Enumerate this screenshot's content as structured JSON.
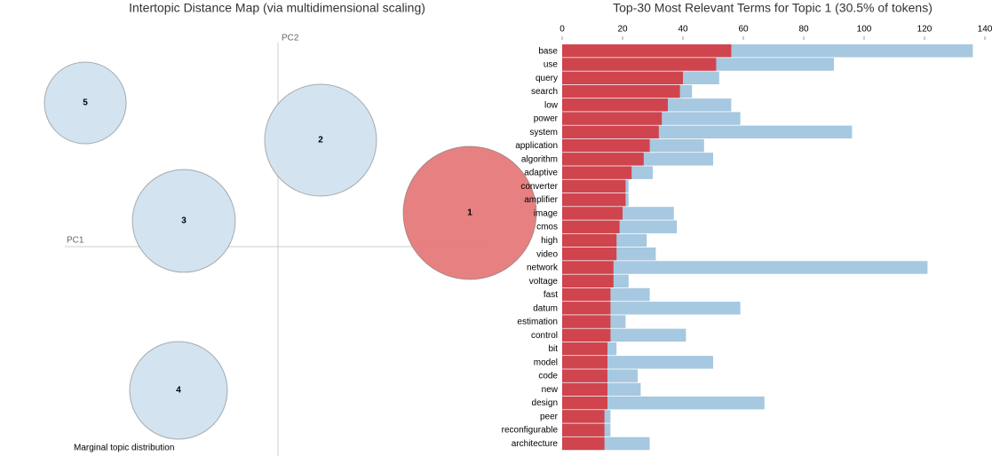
{
  "chart_data": [
    {
      "type": "bubble",
      "title": "Intertopic Distance Map (via multidimensional scaling)",
      "x_label": "PC1",
      "y_label": "PC2",
      "size_label": "Marginal topic distribution",
      "categories": [
        "1",
        "2",
        "3",
        "4",
        "5"
      ],
      "x": [
        2.16,
        0.48,
        -1.06,
        -1.12,
        -2.17
      ],
      "y": [
        0.38,
        1.2,
        0.29,
        -1.62,
        1.62
      ],
      "sizes": [
        30.5,
        21.5,
        18.2,
        16.4,
        11.5
      ],
      "colors": [
        "#e67a7a",
        "#d1e3ef",
        "#d1e3ef",
        "#d1e3ef",
        "#d1e3ef"
      ],
      "xlim": [
        -3.13,
        2.47
      ],
      "ylim": [
        -2.36,
        2.3
      ]
    },
    {
      "type": "barh",
      "title": "Top-30 Most Relevant Terms for Topic 1 (30.5% of tokens)",
      "categories": [
        "base",
        "use",
        "query",
        "search",
        "low",
        "power",
        "system",
        "application",
        "algorithm",
        "adaptive",
        "converter",
        "amplifier",
        "image",
        "cmos",
        "high",
        "video",
        "network",
        "voltage",
        "fast",
        "datum",
        "estimation",
        "control",
        "bit",
        "model",
        "code",
        "new",
        "design",
        "peer",
        "reconfigurable",
        "architecture"
      ],
      "series": [
        {
          "color": "#a6c8e0",
          "values": [
            136,
            90,
            52,
            43,
            56,
            59,
            96,
            47,
            50,
            30,
            22,
            22,
            37,
            38,
            28,
            31,
            121,
            22,
            29,
            59,
            21,
            41,
            18,
            50,
            25,
            26,
            67,
            16,
            16,
            29
          ]
        },
        {
          "color": "#d0444d",
          "values": [
            56,
            51,
            40,
            39,
            35,
            33,
            32,
            29,
            27,
            23,
            21,
            21,
            20,
            19,
            18,
            18,
            17,
            17,
            16,
            16,
            16,
            16,
            15,
            15,
            15,
            15,
            15,
            14,
            14,
            14
          ]
        }
      ],
      "xlim": [
        0,
        140
      ],
      "xticks": [
        0,
        20,
        40,
        60,
        80,
        100,
        120,
        140
      ]
    }
  ]
}
